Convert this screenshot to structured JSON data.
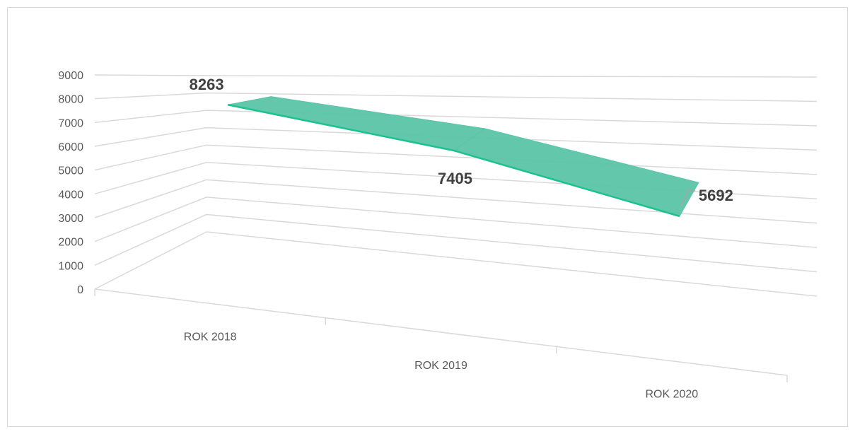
{
  "chart_data": {
    "type": "line",
    "style": "3d-ribbon",
    "title": "",
    "xlabel": "",
    "ylabel": "",
    "categories": [
      "ROK 2018",
      "ROK 2019",
      "ROK 2020"
    ],
    "series": [
      {
        "values": [
          8263,
          7405,
          5692
        ],
        "color": "#5bc4a8",
        "edge_color": "#19c28e"
      }
    ],
    "ylim": [
      0,
      9000
    ],
    "yticks": [
      "0",
      "1000",
      "2000",
      "3000",
      "4000",
      "5000",
      "6000",
      "7000",
      "8000",
      "9000"
    ],
    "data_labels": [
      "8263",
      "7405",
      "5692"
    ],
    "grid": true,
    "legend": "none"
  }
}
